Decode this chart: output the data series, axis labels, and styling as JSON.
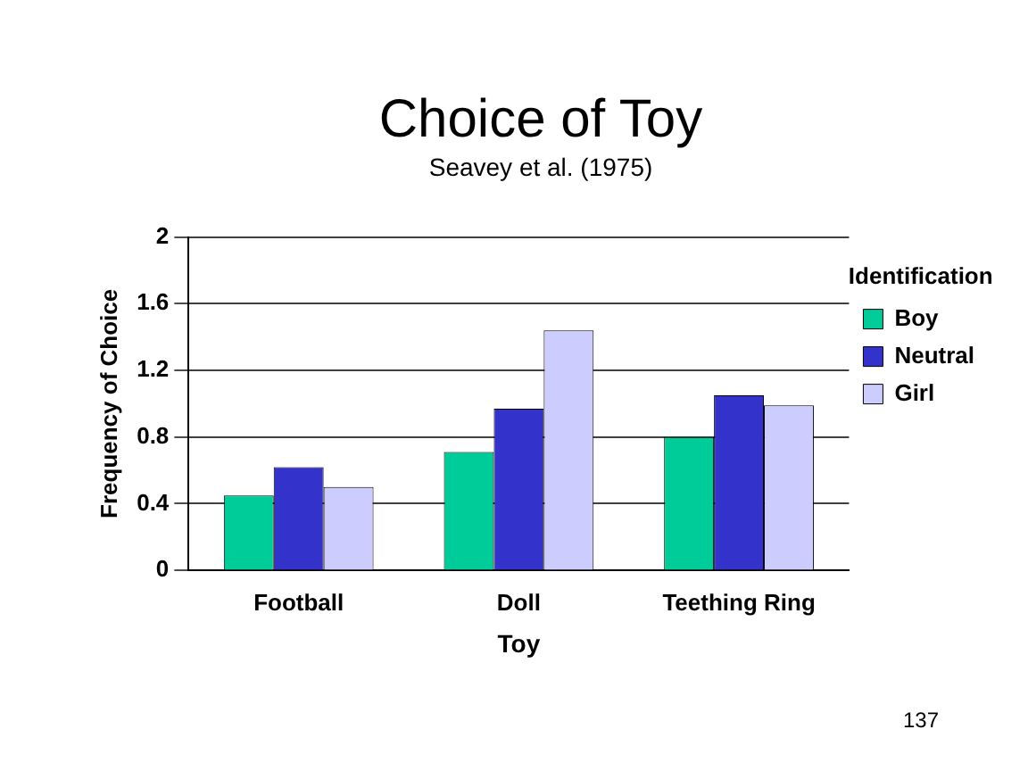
{
  "chart_data": {
    "type": "bar",
    "title": "Choice of Toy",
    "subtitle": "Seavey et al. (1975)",
    "xlabel": "Toy",
    "ylabel": "Frequency of Choice",
    "legend_title": "Identification",
    "categories": [
      "Football",
      "Doll",
      "Teething Ring"
    ],
    "series": [
      {
        "name": "Boy",
        "color": "#00cc99",
        "values": [
          0.45,
          0.71,
          0.8
        ]
      },
      {
        "name": "Neutral",
        "color": "#3333cc",
        "values": [
          0.62,
          0.97,
          1.05
        ]
      },
      {
        "name": "Girl",
        "color": "#ccccff",
        "values": [
          0.5,
          1.44,
          0.99
        ]
      }
    ],
    "ylim": [
      0,
      2
    ],
    "yticks": [
      0,
      0.4,
      0.8,
      1.2,
      1.6,
      2
    ],
    "grid": "y",
    "legend": "right",
    "annotations": [
      "137"
    ]
  }
}
